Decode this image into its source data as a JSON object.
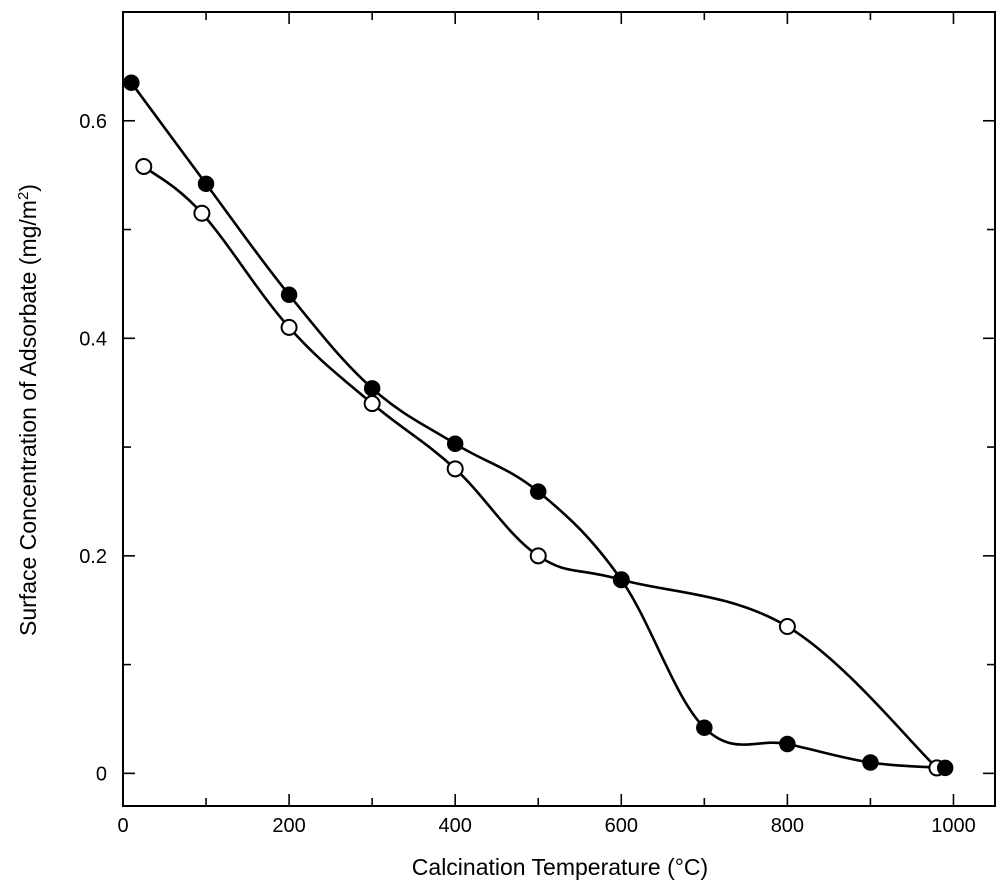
{
  "chart_data": {
    "type": "line",
    "xlabel": "Calcination Temperature (°C)",
    "ylabel_main": "Surface Concentration of Adsorbate (mg/m",
    "ylabel_sup": "2",
    "ylabel_end": ")",
    "xlim": [
      0,
      1050
    ],
    "ylim": [
      -0.03,
      0.7
    ],
    "x_ticks": [
      {
        "value": 0,
        "label": "0"
      },
      {
        "value": 200,
        "label": "200"
      },
      {
        "value": 400,
        "label": "400"
      },
      {
        "value": 600,
        "label": "600"
      },
      {
        "value": 800,
        "label": "800"
      },
      {
        "value": 1000,
        "label": "1000"
      }
    ],
    "x_minor_ticks": [
      100,
      300,
      500,
      700,
      900
    ],
    "y_ticks": [
      {
        "value": 0,
        "label": "0"
      },
      {
        "value": 0.2,
        "label": "0.2"
      },
      {
        "value": 0.4,
        "label": "0.4"
      },
      {
        "value": 0.6,
        "label": "0.6"
      }
    ],
    "y_minor_ticks": [
      0.1,
      0.3,
      0.5
    ],
    "grid": false,
    "series": [
      {
        "marker": "filled-circle",
        "color": "#000000",
        "points": [
          [
            10,
            0.635
          ],
          [
            100,
            0.542
          ],
          [
            200,
            0.44
          ],
          [
            300,
            0.354
          ],
          [
            400,
            0.303
          ],
          [
            500,
            0.259
          ],
          [
            600,
            0.178
          ],
          [
            700,
            0.042
          ],
          [
            800,
            0.027
          ],
          [
            900,
            0.01
          ],
          [
            990,
            0.005
          ]
        ]
      },
      {
        "marker": "open-circle",
        "color": "#000000",
        "points": [
          [
            25,
            0.558
          ],
          [
            95,
            0.515
          ],
          [
            200,
            0.41
          ],
          [
            300,
            0.34
          ],
          [
            400,
            0.28
          ],
          [
            500,
            0.2
          ],
          [
            600,
            0.178
          ],
          [
            800,
            0.135
          ],
          [
            980,
            0.005
          ]
        ]
      }
    ]
  }
}
